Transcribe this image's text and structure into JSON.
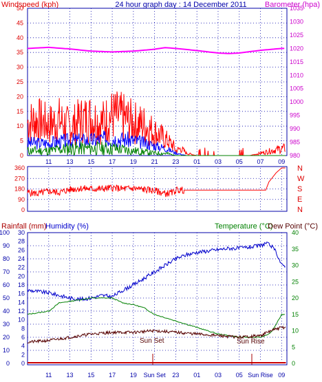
{
  "page": {
    "title": "24 hour graph day : 14 December 2011",
    "wind_speed_label": "Windspeed (kph)",
    "barometer_label": "Barometer (hpa)",
    "rainfall_label": "Rainfall (mm)",
    "humidity_label": "Humidity (%)",
    "temperature_label": "Temperature (°C)",
    "dew_point_label": "Dew Point (°C)",
    "direction_letters": [
      "N",
      "W",
      "S",
      "E",
      "N"
    ],
    "sun_set_label": "Sun Set",
    "sun_rise_label": "Sun Rise",
    "colors": {
      "wind_speed": "#ff0000",
      "wind_gust_band": "#0000ff",
      "wind_low_band": "#008000",
      "barometer": "#ff00ff",
      "temperature": "#0000cc",
      "humidity": "#008000",
      "dew_point": "#550000",
      "rainfall": "#cc0000",
      "panel_border": "#0000aa"
    }
  },
  "chart_data": [
    {
      "type": "line",
      "title": "24 hour graph day : 14 December 2011",
      "x_tick_labels": [
        "11",
        "13",
        "15",
        "17",
        "19",
        "21",
        "23",
        "01",
        "03",
        "05",
        "07",
        "09"
      ],
      "x_hours_from_09": [
        2,
        4,
        6,
        8,
        10,
        12,
        14,
        16,
        18,
        20,
        22,
        24
      ],
      "y_left": {
        "label": "Windspeed (kph)",
        "range": [
          0,
          50
        ],
        "ticks": [
          0,
          5,
          10,
          15,
          20,
          25,
          30,
          35,
          40,
          45,
          50
        ]
      },
      "y_right": {
        "label": "Barometer (hpa)",
        "range": [
          980,
          1035
        ],
        "ticks": [
          980,
          985,
          990,
          995,
          1000,
          1005,
          1010,
          1015,
          1020,
          1025,
          1030,
          1035
        ]
      },
      "grid": true,
      "series": [
        {
          "name": "Barometer (hpa)",
          "axis": "right",
          "x": [
            0,
            2,
            4,
            6,
            8,
            10,
            12,
            13,
            14,
            16,
            18,
            19,
            20,
            22,
            24
          ],
          "values": [
            1020.0,
            1020.4,
            1019.8,
            1019.0,
            1018.7,
            1019.0,
            1019.7,
            1020.3,
            1020.0,
            1019.2,
            1018.3,
            1018.1,
            1018.3,
            1019.3,
            1020.0
          ]
        },
        {
          "axis": "left",
          "x": [
            0,
            1,
            2,
            3,
            4,
            5,
            6,
            7,
            8,
            9,
            10,
            11,
            12,
            13,
            13.8,
            14,
            14.5,
            15,
            16,
            17,
            18,
            19,
            20,
            21,
            22,
            23,
            24
          ],
          "values": [
            14,
            15,
            13,
            15,
            12,
            15,
            16,
            14,
            17,
            16,
            14,
            13,
            10,
            7,
            4,
            2,
            3,
            1,
            0,
            0,
            0,
            0,
            0,
            0,
            1,
            2,
            3
          ]
        },
        {
          "axis": "left",
          "x": [
            0,
            2,
            4,
            6,
            8,
            10,
            12,
            13,
            14,
            15,
            16,
            24
          ],
          "values": [
            5,
            5,
            6,
            6,
            7,
            6,
            4,
            3,
            1,
            0,
            0,
            0
          ]
        },
        {
          "axis": "left",
          "x": [
            0,
            2,
            4,
            6,
            8,
            10,
            12,
            13,
            14,
            24
          ],
          "values": [
            2,
            2,
            3,
            3,
            3,
            2,
            1,
            1,
            0,
            0
          ]
        }
      ]
    },
    {
      "type": "line",
      "x_hours_from_09": [
        2,
        4,
        6,
        8,
        10,
        12,
        14,
        16,
        18,
        20,
        22,
        24
      ],
      "y_left": {
        "range": [
          0,
          360
        ],
        "ticks": [
          0,
          90,
          180,
          270,
          360
        ]
      },
      "grid": true,
      "series": [
        {
          "axis": "left",
          "x": [
            0,
            1,
            2,
            3,
            4,
            5,
            6,
            7,
            8,
            9,
            10,
            11,
            12,
            13,
            13.8,
            14,
            14.5,
            15,
            22.5,
            22.8,
            23.5,
            24
          ],
          "values": [
            150,
            140,
            160,
            150,
            175,
            185,
            180,
            180,
            190,
            180,
            185,
            175,
            165,
            140,
            150,
            170,
            170,
            170,
            170,
            240,
            320,
            360
          ]
        }
      ]
    },
    {
      "type": "line",
      "x_tick_labels": [
        "11",
        "13",
        "15",
        "17",
        "19",
        "Sun Set",
        "23",
        "01",
        "03",
        "05",
        "Sun Rise",
        "09"
      ],
      "x_hours_from_09": [
        2,
        4,
        6,
        8,
        10,
        12,
        14,
        16,
        18,
        20,
        22,
        24
      ],
      "y_left_outer": {
        "label": "Rainfall (mm)",
        "range": [
          0,
          100
        ],
        "ticks": [
          0,
          10,
          20,
          30,
          40,
          50,
          60,
          70,
          80,
          90,
          100
        ]
      },
      "y_left_inner": {
        "label": "Humidity (%)",
        "range": [
          0,
          30
        ],
        "ticks": [
          0,
          2,
          4,
          6,
          8,
          10,
          12,
          14,
          16,
          18,
          20,
          22,
          24,
          26,
          28,
          30
        ]
      },
      "y_right": {
        "label": "Temperature (°C) / Dew Point (°C)",
        "range": [
          0,
          40
        ],
        "ticks": [
          0,
          5,
          10,
          15,
          20,
          25,
          30,
          35,
          40
        ]
      },
      "grid": true,
      "series": [
        {
          "axis": "left_outer",
          "x": [
            0,
            2,
            4,
            5,
            6,
            7,
            8,
            9,
            10,
            11,
            12,
            13,
            14,
            15,
            16,
            17,
            18,
            19,
            20,
            21,
            22,
            22.5,
            23,
            23.5,
            24
          ],
          "values": [
            56,
            54,
            50,
            49,
            50,
            52,
            51,
            56,
            60,
            65,
            70,
            75,
            80,
            83,
            85,
            86,
            87,
            88,
            88,
            89,
            90,
            92,
            90,
            85,
            75
          ]
        },
        {
          "axis": "right",
          "x": [
            0,
            1,
            2,
            3,
            4,
            5,
            6,
            7,
            8,
            9,
            10,
            11,
            12,
            13,
            14,
            15,
            16,
            17,
            18,
            19,
            20,
            21,
            22,
            22.5,
            23,
            23.5,
            24
          ],
          "values": [
            15,
            15.5,
            16,
            18.5,
            19,
            19.5,
            20,
            20,
            20,
            18.5,
            18,
            17,
            15,
            14,
            13,
            12,
            11,
            10,
            9,
            8.5,
            8,
            8,
            8,
            8.5,
            9.5,
            12,
            15
          ]
        },
        {
          "axis": "right",
          "x": [
            0,
            2,
            4,
            6,
            8,
            10,
            12,
            14,
            16,
            18,
            20,
            22,
            23,
            24
          ],
          "values": [
            6.5,
            7,
            8,
            9,
            9.5,
            9.5,
            10,
            9.5,
            9,
            8.5,
            8,
            8.5,
            10,
            11
          ]
        },
        {
          "axis": "left_outer",
          "x": [
            0,
            24
          ],
          "values": [
            0,
            0
          ]
        }
      ]
    }
  ]
}
